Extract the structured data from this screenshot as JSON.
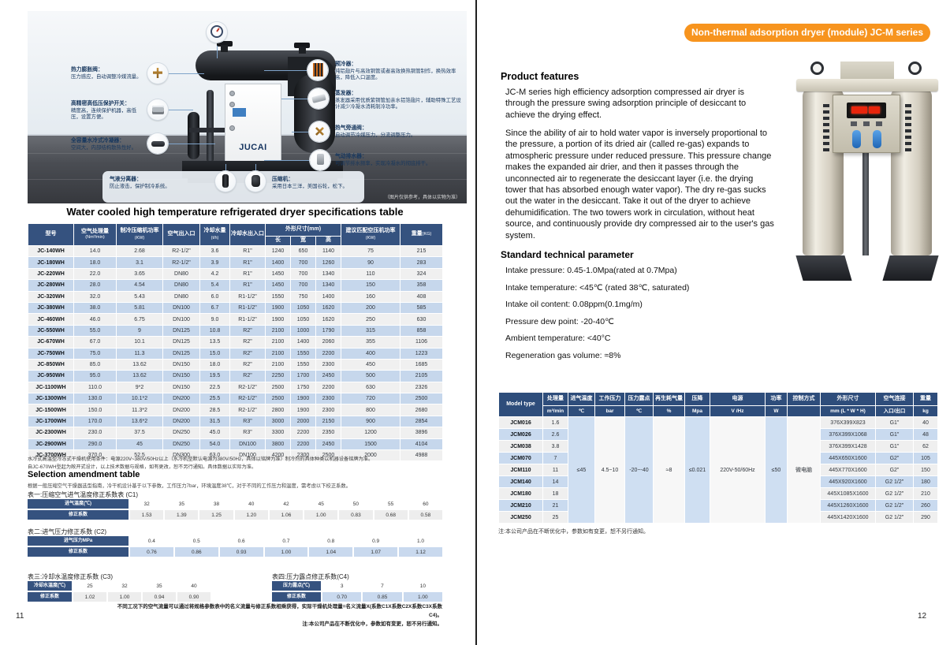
{
  "colors": {
    "accent_orange": "#F7941E",
    "left_header_navy": "#35527F",
    "right_header_navy": "#2E4D7B",
    "row_blue": "#C6D7EC",
    "row_gray": "#F0F0F0"
  },
  "left": {
    "page_number": "11",
    "photo": {
      "brand": "JUCAI",
      "watermark": "（图片仅供参考，具体以实物为准）",
      "callouts": {
        "expansion_valve": {
          "title": "热力膨胀阀：",
          "body": "压力感应，自动调整冷媒流量。"
        },
        "pressure_switch": {
          "title": "高精密高低压保护开关：",
          "body": "精度高，连续保护机器，高低压，设置方便。"
        },
        "condenser": {
          "title": "全容量水冷式冷凝器：",
          "body": "空间大，内部结构散热性好。"
        },
        "separator": {
          "title": "气液分离器：",
          "body": "防止液击，保护制冷系统。"
        },
        "compressor": {
          "title": "压缩机：",
          "body": "采用日本三洋，美国谷轮，松下。"
        },
        "precooler": {
          "title": "预冷器：",
          "body": "纯铝翅片与高效铜管或者高效换热铜管制作，换热效率高，降低入口温度。"
        },
        "evaporator": {
          "title": "蒸发器：",
          "body": "蒸发器采用优质紫铜管加亲水铝箔翅片，辅助特殊工艺设计减少冷凝水消耗制冷功率。"
        },
        "bypass_valve": {
          "title": "热气旁通阀：",
          "body": "自动调节冷媒压力，分流调整压力。"
        },
        "drainer": {
          "title": "气动排水器：",
          "body": "可调节排水频率，实现冷凝水的彻底排干。"
        }
      }
    },
    "title": "Water cooled high temperature refrigerated dryer specifications table",
    "spec_table": {
      "h": {
        "model": "型号",
        "capacity": "空气处理量",
        "capacity_u": "(Nm³/min)",
        "comp_power": "制冷压缩机功率",
        "comp_power_u": "(KW)",
        "air_io": "空气出入口",
        "water_flow": "冷却水量",
        "water_flow_u": "(t/h)",
        "water_io": "冷却水出入口",
        "dims": "外形尺寸(mm)",
        "len": "长",
        "wid": "宽",
        "hei": "高",
        "match_power": "建议匹配空压机功率",
        "match_power_u": "(KW)",
        "weight": "重量",
        "weight_u": "(KG)"
      },
      "rows": [
        [
          "JC-140WH",
          "14.0",
          "2.68",
          "R2-1/2\"",
          "3.6",
          "R1\"",
          "1240",
          "650",
          "1140",
          "75",
          "215"
        ],
        [
          "JC-180WH",
          "18.0",
          "3.1",
          "R2-1/2\"",
          "3.9",
          "R1\"",
          "1400",
          "700",
          "1260",
          "90",
          "283"
        ],
        [
          "JC-220WH",
          "22.0",
          "3.65",
          "DN80",
          "4.2",
          "R1\"",
          "1450",
          "700",
          "1340",
          "110",
          "324"
        ],
        [
          "JC-280WH",
          "28.0",
          "4.54",
          "DN80",
          "5.4",
          "R1\"",
          "1450",
          "700",
          "1340",
          "150",
          "358"
        ],
        [
          "JC-320WH",
          "32.0",
          "5.43",
          "DN80",
          "6.0",
          "R1-1/2\"",
          "1550",
          "750",
          "1400",
          "160",
          "408"
        ],
        [
          "JC-380WH",
          "38.0",
          "5.81",
          "DN100",
          "6.7",
          "R1-1/2\"",
          "1900",
          "1050",
          "1620",
          "200",
          "585"
        ],
        [
          "JC-460WH",
          "46.0",
          "6.75",
          "DN100",
          "9.0",
          "R1-1/2\"",
          "1900",
          "1050",
          "1620",
          "250",
          "630"
        ],
        [
          "JC-550WH",
          "55.0",
          "9",
          "DN125",
          "10.8",
          "R2\"",
          "2100",
          "1000",
          "1790",
          "315",
          "858"
        ],
        [
          "JC-670WH",
          "67.0",
          "10.1",
          "DN125",
          "13.5",
          "R2\"",
          "2100",
          "1400",
          "2060",
          "355",
          "1106"
        ],
        [
          "JC-750WH",
          "75.0",
          "11.3",
          "DN125",
          "15.0",
          "R2\"",
          "2100",
          "1550",
          "2200",
          "400",
          "1223"
        ],
        [
          "JC-850WH",
          "85.0",
          "13.62",
          "DN150",
          "18.0",
          "R2\"",
          "2100",
          "1550",
          "2300",
          "450",
          "1685"
        ],
        [
          "JC-950WH",
          "95.0",
          "13.62",
          "DN150",
          "19.5",
          "R2\"",
          "2250",
          "1700",
          "2450",
          "500",
          "2105"
        ],
        [
          "JC-1100WH",
          "110.0",
          "9*2",
          "DN150",
          "22.5",
          "R2-1/2\"",
          "2500",
          "1750",
          "2200",
          "630",
          "2326"
        ],
        [
          "JC-1300WH",
          "130.0",
          "10.1*2",
          "DN200",
          "25.5",
          "R2-1/2\"",
          "2500",
          "1900",
          "2300",
          "720",
          "2500"
        ],
        [
          "JC-1500WH",
          "150.0",
          "11.3*2",
          "DN200",
          "28.5",
          "R2-1/2\"",
          "2800",
          "1900",
          "2300",
          "800",
          "2680"
        ],
        [
          "JC-1700WH",
          "170.0",
          "13.6*2",
          "DN200",
          "31.5",
          "R3\"",
          "3000",
          "2000",
          "2150",
          "900",
          "2854"
        ],
        [
          "JC-2300WH",
          "230.0",
          "37.5",
          "DN250",
          "45.0",
          "R3\"",
          "3300",
          "2200",
          "2350",
          "1200",
          "3896"
        ],
        [
          "JC-2900WH",
          "290.0",
          "45",
          "DN250",
          "54.0",
          "DN100",
          "3800",
          "2200",
          "2450",
          "1500",
          "4104"
        ],
        [
          "JC-3700WH",
          "370.0",
          "52.5",
          "DN300",
          "63.0",
          "DN100",
          "4200",
          "2300",
          "2500",
          "2000",
          "4988"
        ]
      ]
    },
    "notes": [
      "水冷式高温型冷冻式干燥机使用条件：电源220V~380V/50Hz以上（水冷机型默认电源为380V/50Hz，具体以铭牌为准）制冷剂的具体种类以机器设备铭牌为准。",
      "自JC-670WH型起为敞开式设计，以上技术数据与规格，如有更改，恕不另行通知。具体数据以实际为准。"
    ],
    "selection": {
      "heading": "Selection amendment table",
      "subtitle": "根据一般压缩空气干燥器选型指南，冷干机设计基于以下参数，工作压力7bar，环境温度38℃，对于不同的工作压力和温度，需考虑以下校正系数。",
      "c1": {
        "label": "表一:压缩空气进气温度修正系数表 (C1)",
        "rows": [
          [
            "进气温度(℃)",
            "32",
            "35",
            "38",
            "40",
            "42",
            "45",
            "50",
            "55",
            "60"
          ],
          [
            "修正系数",
            "1.53",
            "1.39",
            "1.25",
            "1.20",
            "1.06",
            "1.00",
            "0.83",
            "0.68",
            "0.58"
          ]
        ]
      },
      "c2": {
        "label": "表二:进气压力修正系数 (C2)",
        "rows": [
          [
            "进气压力MPa",
            "0.4",
            "0.5",
            "0.6",
            "0.7",
            "0.8",
            "0.9",
            "1.0"
          ],
          [
            "修正系数",
            "0.76",
            "0.86",
            "0.93",
            "1.00",
            "1.04",
            "1.07",
            "1.12"
          ]
        ]
      },
      "c3": {
        "label": "表三:冷却水温度修正系数 (C3)",
        "rows": [
          [
            "冷却水温度(℃)",
            "25",
            "32",
            "35",
            "40"
          ],
          [
            "修正系数",
            "1.02",
            "1.00",
            "0.94",
            "0.90"
          ]
        ]
      },
      "c4": {
        "label": "表四:压力露点修正系数(C4)",
        "rows": [
          [
            "压力露点(℃)",
            "3",
            "7",
            "10"
          ],
          [
            "修正系数",
            "0.70",
            "0.85",
            "1.00"
          ]
        ]
      }
    },
    "bottom_notes": [
      "不同工况下的空气流量可以通过将规格参数表中的名义流量与修正系数相乘获得，实际干燥机处理量=名义流量X(系数C1X系数C2X系数C3X系数C4)。",
      "注:本公司产品在不断优化中，参数如有变更，恕不另行通知。"
    ]
  },
  "right": {
    "page_number": "12",
    "badge": "Non-thermal adsorption dryer (module) JC-M series",
    "features_heading": "Product features",
    "features": [
      "JC-M series high efficiency adsorption compressed air dryer is through the pressure swing adsorption principle of desiccant to achieve the drying effect.",
      "Since the ability of air to hold water vapor is inversely proportional to the pressure, a portion of its dried air (called re-gas) expands to atmospheric pressure under reduced pressure. This pressure change makes the expanded air drier, and then it passes through the unconnected air to regenerate the desiccant layer (i.e. the drying tower that has absorbed enough water vapor). The dry re-gas sucks out the water in the desiccant. Take it out of the dryer to achieve dehumidification. The two towers work in circulation, without heat source, and continuously provide dry compressed air to the user's gas system."
    ],
    "tech_heading": "Standard technical parameter",
    "params": [
      "Intake pressure: 0.45-1.0Mpa(rated at 0.7Mpa)",
      "Intake temperature: <45℃ (rated 38℃, saturated)",
      "Intake oil content: 0.08ppm(0.1mg/m)",
      "Pressure dew point: -20-40℃",
      "Ambient temperature: <40°C",
      "Regeneration gas volume: ≈8%"
    ],
    "table": {
      "model_header": "Model type",
      "cols": [
        {
          "t": "处理量",
          "u": "m³/min"
        },
        {
          "t": "进气温度",
          "u": "℃"
        },
        {
          "t": "工作压力",
          "u": "bar"
        },
        {
          "t": "压力露点",
          "u": "℃"
        },
        {
          "t": "再生耗气量",
          "u": "%"
        },
        {
          "t": "压降",
          "u": "Mpa"
        },
        {
          "t": "电源",
          "u": "V /Hz"
        },
        {
          "t": "功率",
          "u": "W"
        },
        {
          "t": "控制方式",
          "u": ""
        },
        {
          "t": "外形尺寸",
          "u": "mm (L * W * H)"
        },
        {
          "t": "空气连接",
          "u": "入口/出口"
        },
        {
          "t": "重量",
          "u": "kg"
        }
      ],
      "merged": [
        "≤45",
        "4.5~10",
        "-20~-40",
        "≈8",
        "≤0.021",
        "220V-50/60Hz",
        "≤50",
        "微电脑"
      ],
      "rows": [
        [
          "JCM016",
          "1.6",
          "376X399X823",
          "G1\"",
          "40"
        ],
        [
          "JCM026",
          "2.6",
          "376X399X1068",
          "G1\"",
          "48"
        ],
        [
          "JCM038",
          "3.8",
          "376X399X1428",
          "G1\"",
          "62"
        ],
        [
          "JCM070",
          "7",
          "445X650X1600",
          "G2\"",
          "105"
        ],
        [
          "JCM110",
          "11",
          "445X770X1600",
          "G2\"",
          "150"
        ],
        [
          "JCM140",
          "14",
          "445X920X1600",
          "G2 1/2\"",
          "180"
        ],
        [
          "JCM180",
          "18",
          "445X1085X1600",
          "G2 1/2\"",
          "210"
        ],
        [
          "JCM210",
          "21",
          "445X1260X1600",
          "G2 1/2\"",
          "260"
        ],
        [
          "JCM250",
          "25",
          "445X1420X1600",
          "G2 1/2\"",
          "290"
        ]
      ]
    },
    "note": "注:本公司产品在不断优化中，参数如有变更，恕不另行通知。"
  }
}
